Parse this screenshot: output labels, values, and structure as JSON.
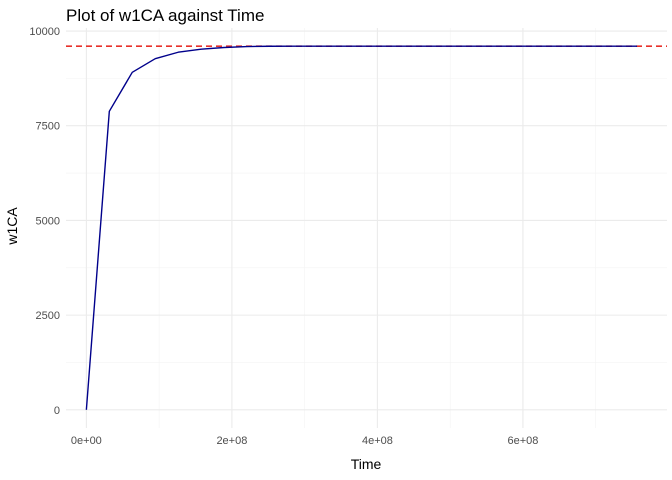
{
  "chart_data": {
    "type": "line",
    "title": "Plot of w1CA against Time",
    "xlabel": "Time",
    "ylabel": "w1CA",
    "xlim": [
      -28000000,
      798000000
    ],
    "ylim": [
      -480,
      10080
    ],
    "x_ticks": [
      0,
      200000000,
      400000000,
      600000000
    ],
    "x_tick_labels": [
      "0e+00",
      "2e+08",
      "4e+08",
      "6e+08"
    ],
    "x_minor_ticks": [
      100000000,
      300000000,
      500000000,
      700000000
    ],
    "y_ticks": [
      0,
      2500,
      5000,
      7500,
      10000
    ],
    "y_tick_labels": [
      "0",
      "2500",
      "5000",
      "7500",
      "10000"
    ],
    "y_minor_ticks": [
      1250,
      3750,
      6250,
      8750
    ],
    "grid": true,
    "series": [
      {
        "color": "#00008B",
        "x": [
          0,
          31536000,
          63072000,
          94608000,
          126144000,
          157680000,
          189216000,
          220752000,
          252288000,
          283824000,
          315360000,
          400000000,
          500000000,
          600000000,
          700000000,
          756864000
        ],
        "y": [
          0,
          7880,
          8910,
          9270,
          9440,
          9520,
          9565,
          9590,
          9598,
          9600,
          9600,
          9600,
          9600,
          9600,
          9600,
          9600
        ]
      }
    ],
    "reference_line": {
      "orientation": "horizontal",
      "y": 9600,
      "color": "#E8302A",
      "style": "dashed"
    }
  }
}
